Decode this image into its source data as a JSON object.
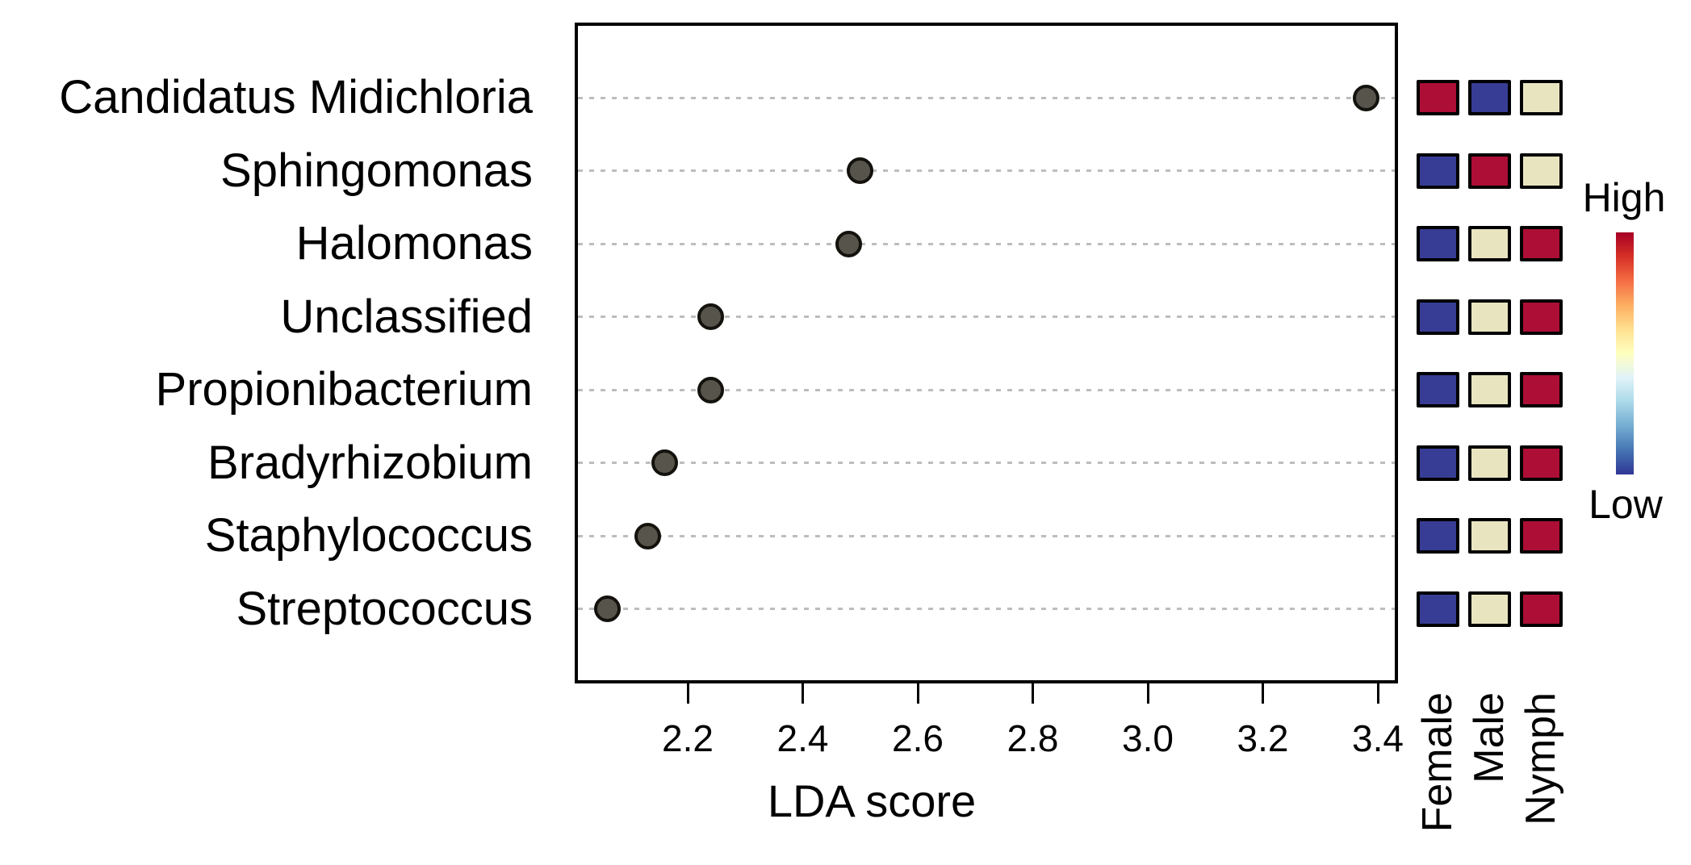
{
  "chart_data": {
    "type": "scatter",
    "title": "",
    "xlabel": "LDA score",
    "xlim": [
      2.01,
      3.43
    ],
    "grid": "dotted horizontal per category",
    "legend_position": "right colorbar",
    "x_ticks": [
      "2.2",
      "2.4",
      "2.6",
      "2.8",
      "3.0",
      "3.2",
      "3.4"
    ],
    "categories": [
      "Candidatus Midichloria",
      "Sphingomonas",
      "Halomonas",
      "Unclassified",
      "Propionibacterium",
      "Bradyrhizobium",
      "Staphylococcus",
      "Streptococcus"
    ],
    "lda_scores": [
      3.38,
      2.5,
      2.48,
      2.24,
      2.24,
      2.16,
      2.13,
      2.06
    ],
    "heatmap": {
      "columns": [
        "Female",
        "Male",
        "Nymph"
      ],
      "levels": [
        [
          "high",
          "low",
          "mid"
        ],
        [
          "low",
          "high",
          "mid"
        ],
        [
          "low",
          "mid",
          "high"
        ],
        [
          "low",
          "mid",
          "high"
        ],
        [
          "low",
          "mid",
          "high"
        ],
        [
          "low",
          "mid",
          "high"
        ],
        [
          "low",
          "mid",
          "high"
        ],
        [
          "low",
          "mid",
          "high"
        ]
      ]
    },
    "colorbar": {
      "high_label": "High",
      "low_label": "Low",
      "gradient_top_to_bottom": [
        "#a50026",
        "#d73027",
        "#f46d43",
        "#fdae61",
        "#fee090",
        "#ffffbf",
        "#e0f3f8",
        "#abd9e9",
        "#74add1",
        "#4575b4",
        "#313695"
      ]
    },
    "colors": {
      "dot_fill": "#57544c",
      "dot_stroke": "#14120d",
      "cell_high": "#ad0e35",
      "cell_mid": "#e9e4c0",
      "cell_low": "#373d95",
      "gridline": "#bdbdbd",
      "axis": "#000000"
    }
  }
}
